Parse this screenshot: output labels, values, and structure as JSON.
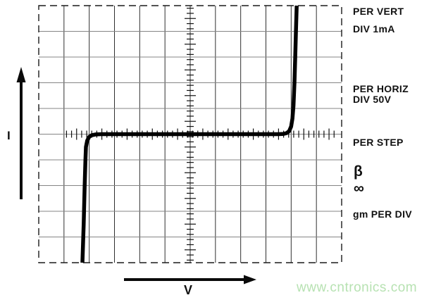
{
  "chart_data": {
    "type": "line",
    "title": "",
    "description": "Curve-tracer oscilloscope display of a device I-V characteristic with symmetric breakdown near ±210 V and near-zero leakage current between breakdown knees",
    "xlabel": "V",
    "ylabel": "I",
    "x_scale_per_div": "50V",
    "y_scale_per_div": "1mA",
    "grid_divisions": {
      "cols": 12,
      "rows": 10
    },
    "axis_range": {
      "x_div": [
        -6,
        6
      ],
      "y_div": [
        -5,
        5
      ],
      "x_volts": [
        -300,
        300
      ],
      "y_mA": [
        -5,
        5
      ]
    },
    "grid_on": true,
    "legend_position": "none",
    "series": [
      {
        "name": "device I-V trace",
        "points_div": [
          [
            -4.27,
            -5.0
          ],
          [
            -4.22,
            -3.5
          ],
          [
            -4.18,
            -2.0
          ],
          [
            -4.15,
            -1.0
          ],
          [
            -4.13,
            -0.5
          ],
          [
            -4.08,
            -0.25
          ],
          [
            -4.0,
            -0.1
          ],
          [
            -3.9,
            -0.04
          ],
          [
            -3.75,
            -0.01
          ],
          [
            -3.5,
            0.0
          ],
          [
            0.0,
            0.0
          ],
          [
            3.5,
            0.0
          ],
          [
            3.7,
            0.01
          ],
          [
            3.82,
            0.04
          ],
          [
            3.92,
            0.12
          ],
          [
            4.0,
            0.3
          ],
          [
            4.05,
            0.6
          ],
          [
            4.09,
            1.1
          ],
          [
            4.13,
            2.0
          ],
          [
            4.16,
            3.0
          ],
          [
            4.19,
            4.0
          ],
          [
            4.22,
            5.0
          ]
        ],
        "points_physical_V_mA": [
          [
            -213.5,
            -5.0
          ],
          [
            -211,
            -3.5
          ],
          [
            -209,
            -2.0
          ],
          [
            -207.5,
            -1.0
          ],
          [
            -206.5,
            -0.5
          ],
          [
            -204,
            -0.25
          ],
          [
            -200,
            -0.1
          ],
          [
            -195,
            -0.04
          ],
          [
            -187.5,
            -0.01
          ],
          [
            -175,
            0.0
          ],
          [
            0,
            0.0
          ],
          [
            175,
            0.0
          ],
          [
            185,
            0.01
          ],
          [
            191,
            0.04
          ],
          [
            196,
            0.12
          ],
          [
            200,
            0.3
          ],
          [
            202.5,
            0.6
          ],
          [
            204.5,
            1.1
          ],
          [
            206.5,
            2.0
          ],
          [
            208,
            3.0
          ],
          [
            209.5,
            4.0
          ],
          [
            211,
            5.0
          ]
        ]
      }
    ]
  },
  "panel_labels": {
    "per_vert": {
      "line1": "PER VERT",
      "line2": "DIV 1mA"
    },
    "per_horiz": {
      "line1": "PER HORIZ",
      "line2": "DIV 50V"
    },
    "per_step": "PER STEP",
    "beta_symbol": "β",
    "infinity_symbol": "∞",
    "gm_per_div": "gm PER DIV"
  },
  "axis_labels": {
    "current": "I",
    "voltage": "V"
  },
  "watermark": {
    "text": "www.cntronics.com",
    "color": "#b7e2b2"
  },
  "style": {
    "background": "#ffffff",
    "curve_color": "#000000",
    "grid_vertical_color": "#2f2f2f",
    "grid_horizontal_color": "#858585",
    "border_color": "#1a1a1a",
    "tick_color": "#111111",
    "arrow_color": "#0a0a0a"
  }
}
